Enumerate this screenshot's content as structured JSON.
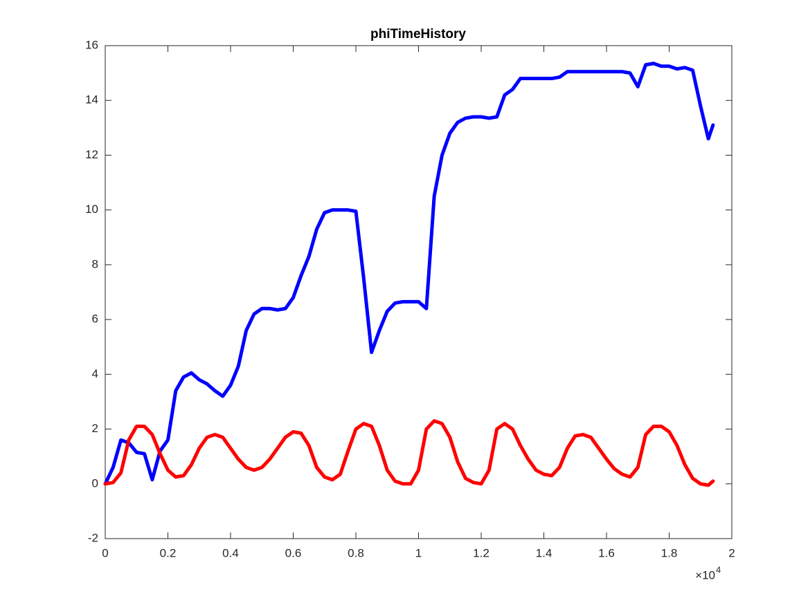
{
  "chart_data": {
    "type": "line",
    "title": "phiTimeHistory",
    "x": [
      0,
      250,
      500,
      750,
      1000,
      1250,
      1500,
      1750,
      2000,
      2250,
      2500,
      2750,
      3000,
      3250,
      3500,
      3750,
      4000,
      4250,
      4500,
      4750,
      5000,
      5250,
      5500,
      5750,
      6000,
      6250,
      6500,
      6750,
      7000,
      7250,
      7500,
      7750,
      8000,
      8250,
      8500,
      8750,
      9000,
      9250,
      9500,
      9750,
      10000,
      10250,
      10500,
      10750,
      11000,
      11250,
      11500,
      11750,
      12000,
      12250,
      12500,
      12750,
      13000,
      13250,
      13500,
      13750,
      14000,
      14250,
      14500,
      14750,
      15000,
      15250,
      15500,
      15750,
      16000,
      16250,
      16500,
      16750,
      17000,
      17250,
      17500,
      17750,
      18000,
      18250,
      18500,
      18750,
      19000,
      19250,
      19400
    ],
    "series": [
      {
        "color": "#0000ff",
        "values": [
          0,
          0.6,
          1.6,
          1.5,
          1.15,
          1.1,
          0.15,
          1.2,
          1.6,
          3.4,
          3.9,
          4.05,
          3.8,
          3.65,
          3.4,
          3.2,
          3.6,
          4.3,
          5.6,
          6.2,
          6.4,
          6.4,
          6.35,
          6.4,
          6.8,
          7.6,
          8.3,
          9.3,
          9.9,
          10.0,
          10.0,
          10.0,
          9.95,
          7.5,
          4.8,
          5.6,
          6.3,
          6.6,
          6.65,
          6.65,
          6.65,
          6.4,
          10.5,
          12.0,
          12.8,
          13.2,
          13.35,
          13.4,
          13.4,
          13.35,
          13.4,
          14.2,
          14.4,
          14.8,
          14.8,
          14.8,
          14.8,
          14.8,
          14.85,
          15.05,
          15.05,
          15.05,
          15.05,
          15.05,
          15.05,
          15.05,
          15.05,
          15.0,
          14.5,
          15.3,
          15.35,
          15.25,
          15.25,
          15.15,
          15.2,
          15.1,
          13.8,
          12.6,
          13.1
        ]
      },
      {
        "color": "#ff0000",
        "values": [
          0,
          0.05,
          0.4,
          1.6,
          2.1,
          2.1,
          1.8,
          1.1,
          0.5,
          0.25,
          0.3,
          0.7,
          1.3,
          1.7,
          1.8,
          1.7,
          1.3,
          0.9,
          0.6,
          0.5,
          0.6,
          0.9,
          1.3,
          1.7,
          1.9,
          1.85,
          1.4,
          0.6,
          0.25,
          0.15,
          0.35,
          1.2,
          2.0,
          2.2,
          2.1,
          1.4,
          0.5,
          0.1,
          0.0,
          0.0,
          0.5,
          2.0,
          2.3,
          2.2,
          1.7,
          0.8,
          0.2,
          0.05,
          0.0,
          0.5,
          2.0,
          2.2,
          2.0,
          1.4,
          0.9,
          0.5,
          0.35,
          0.3,
          0.6,
          1.3,
          1.75,
          1.8,
          1.7,
          1.3,
          0.9,
          0.55,
          0.35,
          0.25,
          0.6,
          1.8,
          2.1,
          2.1,
          1.9,
          1.4,
          0.7,
          0.2,
          0.0,
          -0.05,
          0.1
        ]
      }
    ],
    "xlim": [
      0,
      20000
    ],
    "xticks": [
      0,
      {
        "value": 2000,
        "label": "0.2"
      },
      {
        "value": 4000,
        "label": "0.4"
      },
      {
        "value": 6000,
        "label": "0.6"
      },
      {
        "value": 8000,
        "label": "0.8"
      },
      {
        "value": 10000,
        "label": "1"
      },
      {
        "value": 12000,
        "label": "1.2"
      },
      {
        "value": 14000,
        "label": "1.4"
      },
      {
        "value": 16000,
        "label": "1.6"
      },
      {
        "value": 18000,
        "label": "1.8"
      },
      {
        "value": 20000,
        "label": "2"
      }
    ],
    "x_multiplier": "×10",
    "x_multiplier_exponent": "4",
    "ylim": [
      -2,
      16
    ],
    "yticks": [
      -2,
      0,
      2,
      4,
      6,
      8,
      10,
      12,
      14,
      16
    ],
    "grid": false
  }
}
